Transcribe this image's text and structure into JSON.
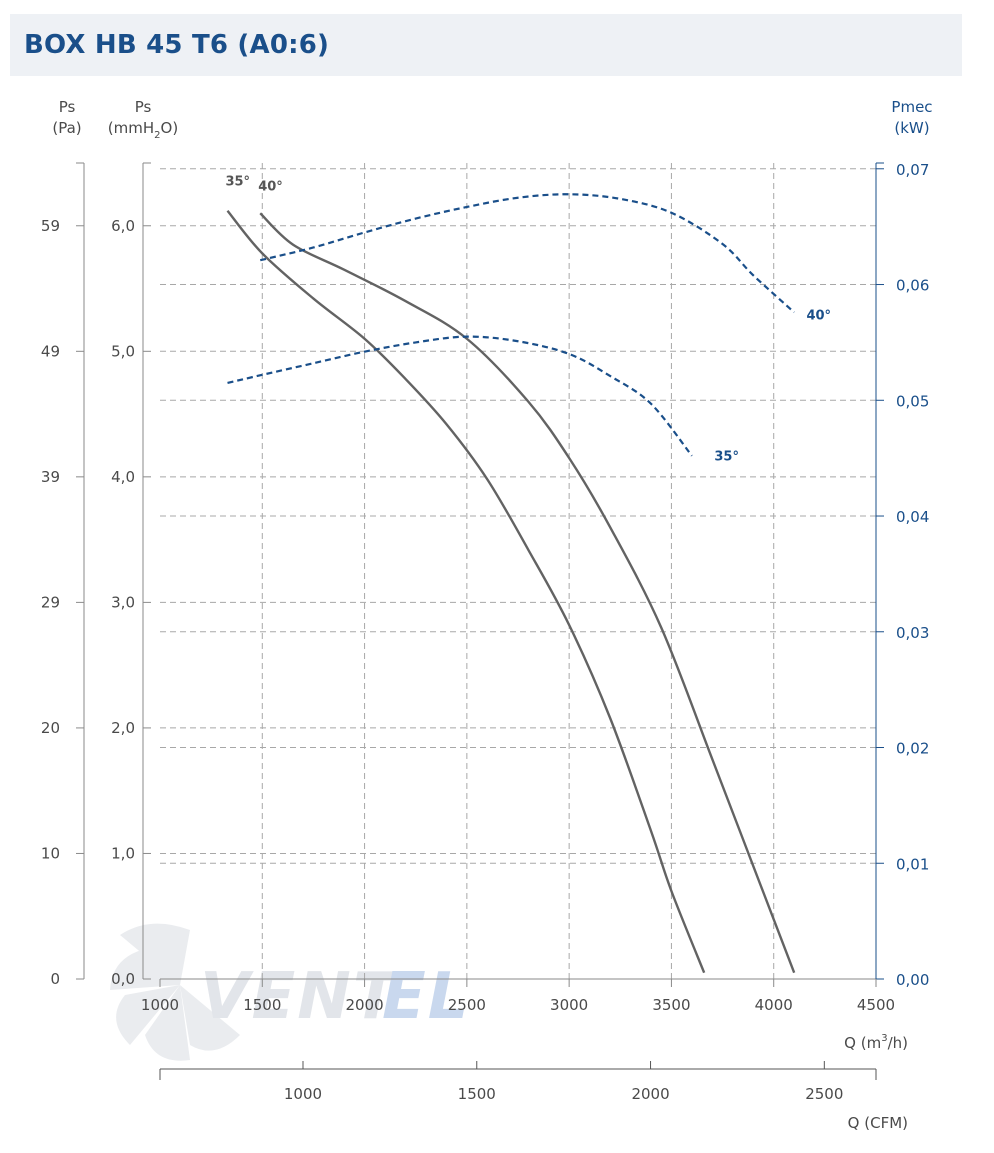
{
  "title": "BOX HB 45 T6 (A0:6)",
  "watermark": {
    "brand_left": "VENT",
    "brand_right": "EL"
  },
  "chart_data": {
    "type": "line",
    "x_axis": {
      "label": "Q (m³/h)",
      "label_parts": [
        "Q (m",
        "3",
        "/h)"
      ],
      "range": [
        1000,
        4500
      ],
      "ticks": [
        "1000",
        "1500",
        "2000",
        "2500",
        "3000",
        "3500",
        "4000",
        "4500"
      ]
    },
    "x_axis_cfm": {
      "label": "Q (CFM)",
      "range": [
        588.6,
        2648.7
      ],
      "ticks": [
        "1000",
        "1500",
        "2000",
        "2500"
      ]
    },
    "y_axis_pa": {
      "label_line1": "Ps",
      "label_line2": "(Pa)",
      "ticks": [
        "0",
        "10",
        "20",
        "29",
        "39",
        "49",
        "59"
      ]
    },
    "y_axis_mmh2o": {
      "label_line1": "Ps",
      "label_parts": [
        "(mmH",
        "2",
        "O)"
      ],
      "range": [
        0,
        6.5
      ],
      "ticks": [
        "0,0",
        "1,0",
        "2,0",
        "3,0",
        "4,0",
        "5,0",
        "6,0"
      ]
    },
    "y_axis_right": {
      "label_line1": "Pmec",
      "label_line2": "(kW)",
      "range": [
        0,
        0.0705
      ],
      "ticks": [
        "0,00",
        "0,01",
        "0,02",
        "0,03",
        "0,04",
        "0,05",
        "0,06",
        "0,07"
      ]
    },
    "series": [
      {
        "name": "35°",
        "kind": "pressure",
        "axis": "mmH2O",
        "color": "#636363",
        "points": [
          [
            1330,
            6.12
          ],
          [
            1500,
            5.78
          ],
          [
            1750,
            5.42
          ],
          [
            2000,
            5.1
          ],
          [
            2200,
            4.78
          ],
          [
            2400,
            4.42
          ],
          [
            2600,
            3.98
          ],
          [
            2800,
            3.42
          ],
          [
            3000,
            2.82
          ],
          [
            3200,
            2.08
          ],
          [
            3400,
            1.18
          ],
          [
            3500,
            0.7
          ],
          [
            3660,
            0.05
          ]
        ]
      },
      {
        "name": "40°",
        "kind": "pressure",
        "axis": "mmH2O",
        "color": "#636363",
        "points": [
          [
            1490,
            6.1
          ],
          [
            1650,
            5.85
          ],
          [
            1900,
            5.65
          ],
          [
            2200,
            5.4
          ],
          [
            2500,
            5.1
          ],
          [
            2800,
            4.6
          ],
          [
            3000,
            4.15
          ],
          [
            3200,
            3.6
          ],
          [
            3450,
            2.8
          ],
          [
            3700,
            1.75
          ],
          [
            3900,
            0.9
          ],
          [
            4100,
            0.05
          ]
        ]
      },
      {
        "name": "35°",
        "kind": "power",
        "axis": "kW",
        "color": "#1a4f8a",
        "points": [
          [
            1330,
            0.0515
          ],
          [
            1500,
            0.0522
          ],
          [
            1750,
            0.0532
          ],
          [
            2000,
            0.0542
          ],
          [
            2250,
            0.055
          ],
          [
            2500,
            0.0555
          ],
          [
            2750,
            0.0551
          ],
          [
            3000,
            0.054
          ],
          [
            3200,
            0.0521
          ],
          [
            3400,
            0.0497
          ],
          [
            3600,
            0.0452
          ]
        ]
      },
      {
        "name": "40°",
        "kind": "power",
        "axis": "kW",
        "color": "#1a4f8a",
        "points": [
          [
            1490,
            0.0621
          ],
          [
            1750,
            0.0632
          ],
          [
            2000,
            0.0645
          ],
          [
            2250,
            0.0657
          ],
          [
            2500,
            0.0667
          ],
          [
            2750,
            0.0675
          ],
          [
            3000,
            0.0678
          ],
          [
            3250,
            0.0674
          ],
          [
            3500,
            0.0662
          ],
          [
            3750,
            0.0635
          ],
          [
            3900,
            0.0608
          ],
          [
            4100,
            0.0576
          ]
        ]
      }
    ],
    "curve_labels": [
      {
        "text": "35°",
        "kind": "pressure",
        "x": 1320,
        "y": 6.32
      },
      {
        "text": "40°",
        "kind": "pressure",
        "x": 1480,
        "y": 6.28
      },
      {
        "text": "35°",
        "kind": "power",
        "x": 3710,
        "y": 0.0448
      },
      {
        "text": "40°",
        "kind": "power",
        "x": 4160,
        "y": 0.057
      }
    ]
  }
}
